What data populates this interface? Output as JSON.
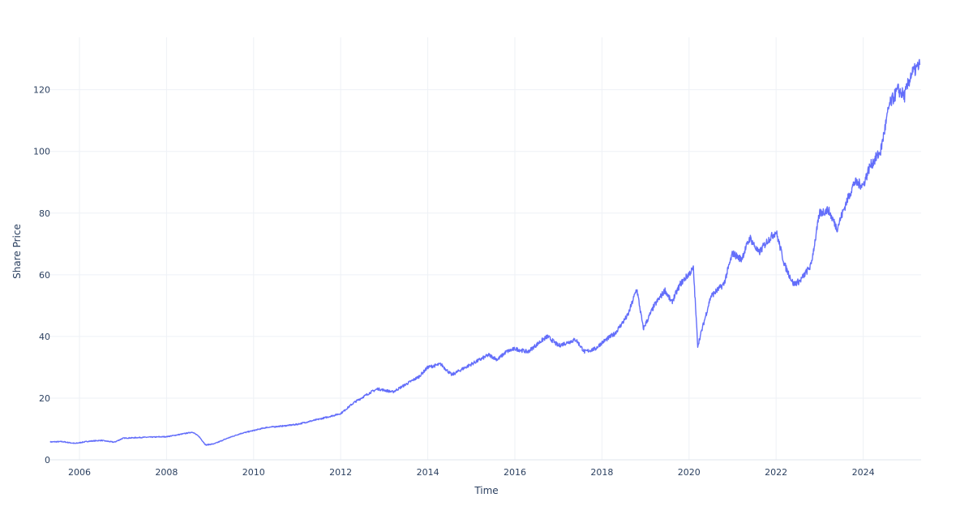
{
  "chart_data": {
    "type": "line",
    "title": "",
    "xlabel": "Time",
    "ylabel": "Share Price",
    "xlim": [
      2005.33,
      2025.33
    ],
    "ylim": [
      0,
      137
    ],
    "grid": true,
    "x_ticks": [
      2006,
      2008,
      2010,
      2012,
      2014,
      2016,
      2018,
      2020,
      2022,
      2024
    ],
    "x_tick_labels": [
      "2006",
      "2008",
      "2010",
      "2012",
      "2014",
      "2016",
      "2018",
      "2020",
      "2022",
      "2024"
    ],
    "y_ticks": [
      0,
      20,
      40,
      60,
      80,
      100,
      120
    ],
    "y_tick_labels": [
      "0",
      "20",
      "40",
      "60",
      "80",
      "100",
      "120"
    ],
    "series": [
      {
        "color": "#636efa",
        "x": [
          2005.33,
          2005.6,
          2005.9,
          2006.2,
          2006.5,
          2006.8,
          2007.0,
          2007.5,
          2008.0,
          2008.3,
          2008.6,
          2008.75,
          2008.9,
          2009.1,
          2009.4,
          2009.7,
          2010.0,
          2010.3,
          2010.7,
          2011.0,
          2011.3,
          2011.6,
          2012.0,
          2012.3,
          2012.7,
          2012.85,
          2013.2,
          2013.5,
          2013.8,
          2014.0,
          2014.3,
          2014.55,
          2014.8,
          2015.0,
          2015.4,
          2015.6,
          2015.8,
          2016.0,
          2016.3,
          2016.6,
          2016.75,
          2017.0,
          2017.4,
          2017.6,
          2017.85,
          2018.0,
          2018.3,
          2018.6,
          2018.8,
          2018.95,
          2019.2,
          2019.45,
          2019.6,
          2019.8,
          2020.1,
          2020.2,
          2020.5,
          2020.8,
          2021.0,
          2021.2,
          2021.4,
          2021.6,
          2021.8,
          2022.0,
          2022.2,
          2022.4,
          2022.55,
          2022.8,
          2023.0,
          2023.2,
          2023.4,
          2023.6,
          2023.8,
          2024.0,
          2024.15,
          2024.4,
          2024.6,
          2024.8,
          2024.95,
          2025.1,
          2025.3
        ],
        "y": [
          5.8,
          5.9,
          5.3,
          6.0,
          6.3,
          5.7,
          7.0,
          7.3,
          7.5,
          8.2,
          9.0,
          7.5,
          4.8,
          5.2,
          7.0,
          8.5,
          9.5,
          10.5,
          11.0,
          11.5,
          12.5,
          13.5,
          15.0,
          18.5,
          22.0,
          23.0,
          22.0,
          24.5,
          27.0,
          30.0,
          31.0,
          27.5,
          29.5,
          31.0,
          34.0,
          32.5,
          35.0,
          36.0,
          35.0,
          38.5,
          40.0,
          37.0,
          39.0,
          35.0,
          36.0,
          38.0,
          41.0,
          47.0,
          55.5,
          42.5,
          50.0,
          55.0,
          51.0,
          57.0,
          62.0,
          37.0,
          53.0,
          57.0,
          67.0,
          65.0,
          72.0,
          67.0,
          71.0,
          74.0,
          63.0,
          57.0,
          58.0,
          63.0,
          80.0,
          81.0,
          75.0,
          83.0,
          90.0,
          89.0,
          95.0,
          100.0,
          115.0,
          120.0,
          118.0,
          125.0,
          128.0
        ]
      }
    ]
  }
}
